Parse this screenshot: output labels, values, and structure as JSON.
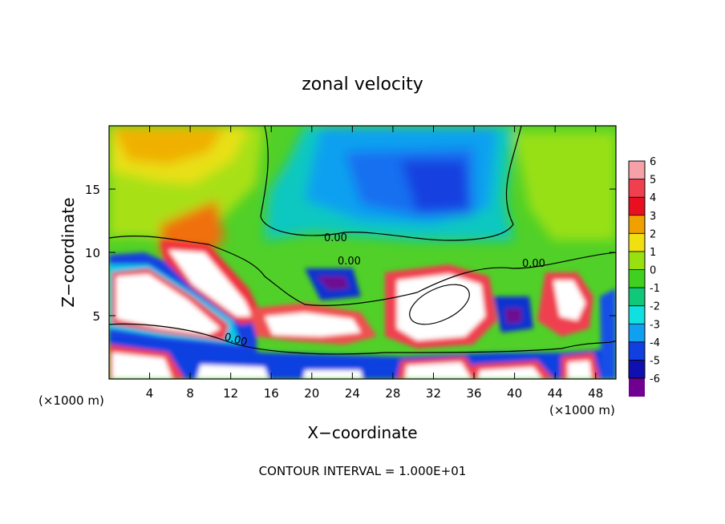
{
  "chart_data": {
    "type": "heatmap",
    "title": "zonal velocity",
    "xlabel": "X−coordinate",
    "ylabel": "Z−coordinate",
    "x_unit_left": "(×1000 m)",
    "x_unit_right": "(×1000 m)",
    "footer": "CONTOUR INTERVAL = 1.000E+01",
    "xlim": [
      0,
      50
    ],
    "ylim": [
      0,
      20
    ],
    "x_ticks": [
      4,
      8,
      12,
      16,
      20,
      24,
      28,
      32,
      36,
      40,
      44,
      48
    ],
    "y_ticks": [
      5,
      10,
      15
    ],
    "colorbar": {
      "ticks": [
        6,
        5,
        4,
        3,
        2,
        1,
        0,
        -1,
        -2,
        -3,
        -4,
        -5,
        -6
      ],
      "colors": [
        "#f8a0a8",
        "#f04050",
        "#e81020",
        "#f0a000",
        "#f0e010",
        "#98e010",
        "#40d020",
        "#10c878",
        "#10e0e0",
        "#10a0f0",
        "#1040e0",
        "#1010b0",
        "#700090"
      ]
    },
    "contour_labels": [
      "0.00",
      "0.00",
      "0.00",
      "0.00"
    ],
    "grid": false,
    "legend": "colorbar-right"
  }
}
